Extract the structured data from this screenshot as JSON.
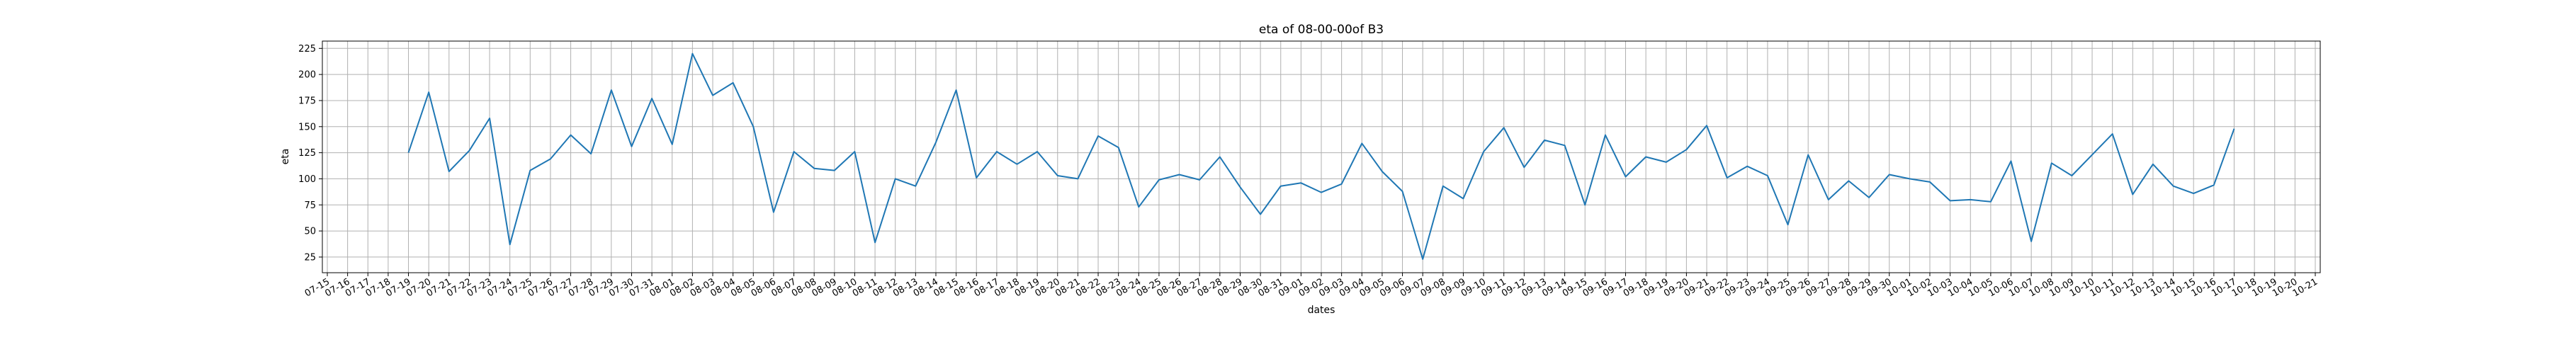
{
  "chart_data": {
    "type": "line",
    "title": "eta of 08-00-00of B3",
    "xlabel": "dates",
    "ylabel": "eta",
    "grid": true,
    "line_color": "#1f77b4",
    "ylim": [
      10,
      232
    ],
    "yticks": [
      25,
      50,
      75,
      100,
      125,
      150,
      175,
      200,
      225
    ],
    "xticks": [
      "07-15",
      "07-16",
      "07-17",
      "07-18",
      "07-19",
      "07-20",
      "07-21",
      "07-22",
      "07-23",
      "07-24",
      "07-25",
      "07-26",
      "07-27",
      "07-28",
      "07-29",
      "07-30",
      "07-31",
      "08-01",
      "08-02",
      "08-03",
      "08-04",
      "08-05",
      "08-06",
      "08-07",
      "08-08",
      "08-09",
      "08-10",
      "08-11",
      "08-12",
      "08-13",
      "08-14",
      "08-15",
      "08-16",
      "08-17",
      "08-18",
      "08-19",
      "08-20",
      "08-21",
      "08-22",
      "08-23",
      "08-24",
      "08-25",
      "08-26",
      "08-27",
      "08-28",
      "08-29",
      "08-30",
      "08-31",
      "09-01",
      "09-02",
      "09-03",
      "09-04",
      "09-05",
      "09-06",
      "09-07",
      "09-08",
      "09-09",
      "09-10",
      "09-11",
      "09-12",
      "09-13",
      "09-14",
      "09-15",
      "09-16",
      "09-17",
      "09-18",
      "09-19",
      "09-20",
      "09-21",
      "09-22",
      "09-23",
      "09-24",
      "09-25",
      "09-26",
      "09-27",
      "09-28",
      "09-29",
      "09-30",
      "10-01",
      "10-02",
      "10-03",
      "10-04",
      "10-05",
      "10-06",
      "10-07",
      "10-08",
      "10-09",
      "10-10",
      "10-11",
      "10-12",
      "10-13",
      "10-14",
      "10-15",
      "10-16",
      "10-17",
      "10-18",
      "10-19",
      "10-20",
      "10-21"
    ],
    "x": [
      "07-19",
      "07-20",
      "07-21",
      "07-22",
      "07-23",
      "07-24",
      "07-25",
      "07-26",
      "07-27",
      "07-28",
      "07-29",
      "07-30",
      "07-31",
      "08-01",
      "08-02",
      "08-03",
      "08-04",
      "08-05",
      "08-06",
      "08-07",
      "08-08",
      "08-09",
      "08-10",
      "08-11",
      "08-12",
      "08-13",
      "08-14",
      "08-15",
      "08-16",
      "08-17",
      "08-18",
      "08-19",
      "08-20",
      "08-21",
      "08-22",
      "08-23",
      "08-24",
      "08-25",
      "08-26",
      "08-27",
      "08-28",
      "08-29",
      "08-30",
      "08-31",
      "09-01",
      "09-02",
      "09-03",
      "09-04",
      "09-05",
      "09-06",
      "09-07",
      "09-08",
      "09-09",
      "09-10",
      "09-11",
      "09-12",
      "09-13",
      "09-14",
      "09-15",
      "09-16",
      "09-17",
      "09-18",
      "09-19",
      "09-20",
      "09-21",
      "09-22",
      "09-23",
      "09-24",
      "09-25",
      "09-26",
      "09-27",
      "09-28",
      "09-29",
      "09-30",
      "10-01",
      "10-02",
      "10-03",
      "10-04",
      "10-05",
      "10-06",
      "10-07",
      "10-08",
      "10-09",
      "10-10",
      "10-11",
      "10-12",
      "10-13",
      "10-14",
      "10-15",
      "10-16",
      "10-17"
    ],
    "values": [
      125,
      183,
      107,
      127,
      158,
      37,
      108,
      119,
      142,
      124,
      185,
      131,
      177,
      133,
      220,
      180,
      192,
      150,
      68,
      126,
      110,
      108,
      126,
      39,
      100,
      93,
      135,
      185,
      101,
      126,
      114,
      126,
      103,
      100,
      141,
      130,
      73,
      99,
      104,
      99,
      121,
      92,
      66,
      93,
      96,
      87,
      95,
      134,
      107,
      88,
      23,
      93,
      81,
      126,
      149,
      111,
      137,
      132,
      75,
      142,
      102,
      121,
      116,
      128,
      151,
      101,
      112,
      103,
      56,
      123,
      80,
      98,
      82,
      104,
      100,
      97,
      79,
      80,
      78,
      117,
      40,
      115,
      103,
      123,
      143,
      85,
      114,
      93,
      86,
      94,
      148
    ]
  }
}
